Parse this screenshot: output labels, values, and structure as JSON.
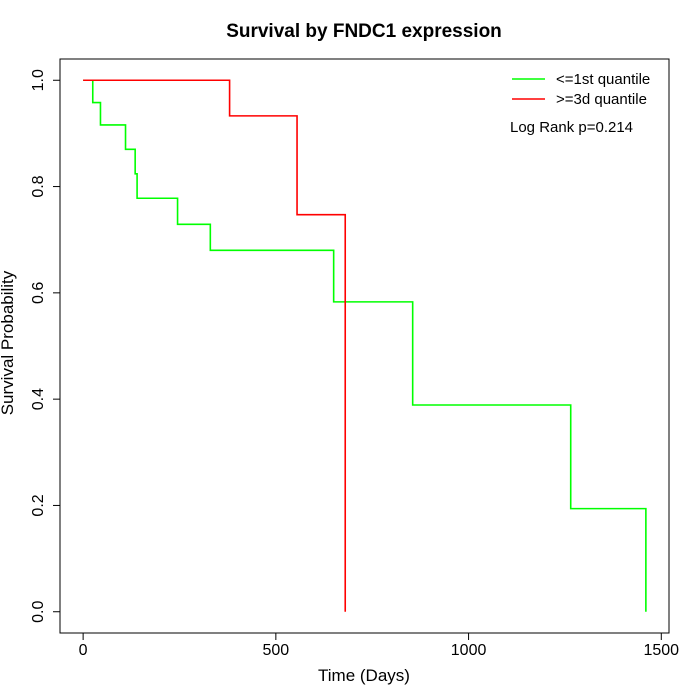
{
  "chart_data": {
    "type": "line",
    "title": "Survival by FNDC1 expression",
    "xlabel": "Time (Days)",
    "ylabel": "Survival Probability",
    "xlim": [
      -60,
      1520
    ],
    "ylim": [
      -0.04,
      1.04
    ],
    "x_ticks": [
      0,
      500,
      1000,
      1500
    ],
    "x_tick_labels": [
      "0",
      "500",
      "1000",
      "1500"
    ],
    "y_ticks": [
      0.0,
      0.2,
      0.4,
      0.6,
      0.8,
      1.0
    ],
    "y_tick_labels": [
      "0.0",
      "0.2",
      "0.4",
      "0.6",
      "0.8",
      "1.0"
    ],
    "grid": false,
    "legend_position": "top-right",
    "annotation": "Log Rank p=0.214",
    "series": [
      {
        "name": "<=1st quantile",
        "color": "#00ff00",
        "step": true,
        "x": [
          0,
          25,
          45,
          110,
          135,
          140,
          245,
          330,
          650,
          855,
          1265,
          1460,
          1460
        ],
        "y": [
          1.0,
          0.958,
          0.916,
          0.87,
          0.824,
          0.778,
          0.729,
          0.68,
          0.583,
          0.389,
          0.194,
          0.194,
          0.0
        ]
      },
      {
        "name": ">=3d quantile",
        "color": "#ff0000",
        "step": true,
        "x": [
          0,
          380,
          555,
          680,
          680
        ],
        "y": [
          1.0,
          0.933,
          0.747,
          0.747,
          0.0
        ]
      }
    ]
  }
}
